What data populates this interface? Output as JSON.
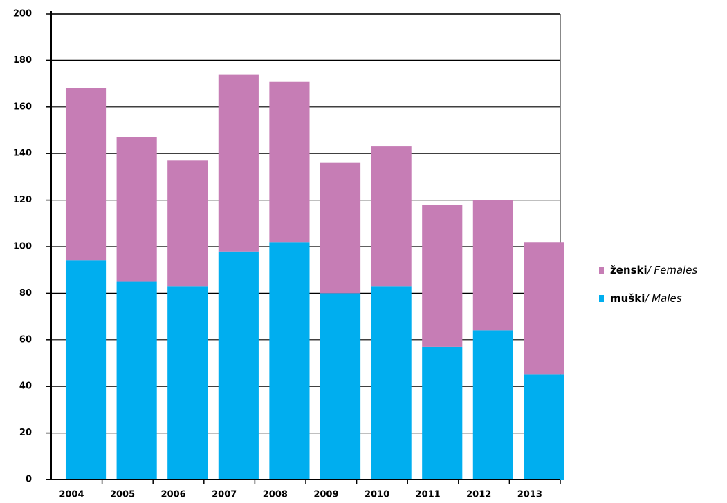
{
  "chart_data": {
    "type": "stacked_bar",
    "categories": [
      "2004",
      "2005",
      "2006",
      "2007",
      "2008",
      "2009",
      "2010",
      "2011",
      "2012",
      "2013"
    ],
    "series": [
      {
        "name": "muški/ Males",
        "color": "#00aeef",
        "values": [
          94,
          85,
          83,
          98,
          102,
          80,
          83,
          57,
          64,
          45
        ]
      },
      {
        "name": "ženski/ Females",
        "color": "#c67db5",
        "values": [
          74,
          62,
          54,
          76,
          69,
          56,
          60,
          61,
          56,
          57
        ]
      }
    ],
    "ylim": [
      0,
      200
    ],
    "yticks": [
      0,
      20,
      40,
      60,
      80,
      100,
      120,
      140,
      160,
      180,
      200
    ],
    "grid": true
  }
}
